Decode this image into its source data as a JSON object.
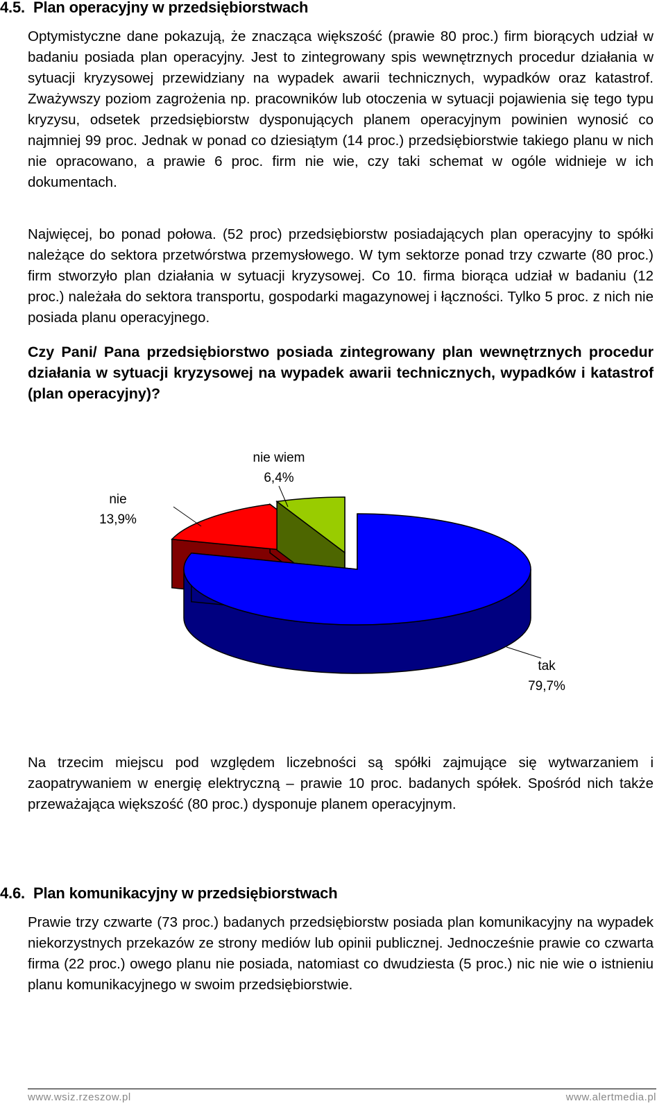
{
  "section1": {
    "number": "4.5.",
    "title": "Plan operacyjny w przedsiębiorstwach",
    "para1": "Optymistyczne dane pokazują, że znacząca większość (prawie 80 proc.) firm biorących udział w badaniu posiada plan operacyjny. Jest to zintegrowany spis wewnętrznych procedur działania w sytuacji kryzysowej przewidziany na wypadek awarii technicznych, wypadków oraz katastrof. Zważywszy poziom zagrożenia np. pracowników lub otoczenia w sytuacji pojawienia się tego typu kryzysu, odsetek przedsiębiorstw dysponujących planem operacyjnym powinien wynosić co najmniej 99 proc. Jednak w ponad co dziesiątym (14 proc.) przedsiębiorstwie takiego planu w nich nie opracowano, a prawie 6 proc. firm nie wie, czy taki schemat w ogóle widnieje w ich dokumentach.",
    "para2": "Najwięcej, bo ponad połowa. (52 proc) przedsiębiorstw posiadających plan operacyjny to spółki należące do sektora przetwórstwa przemysłowego. W tym sektorze ponad trzy czwarte (80 proc.) firm stworzyło plan działania w sytuacji kryzysowej. Co 10. firma biorąca udział w badaniu (12 proc.) należała do sektora transportu, gospodarki magazynowej i łączności. Tylko 5 proc. z nich nie posiada planu operacyjnego.",
    "question": "Czy Pani/ Pana przedsiębiorstwo posiada zintegrowany plan wewnętrznych procedur działania w sytuacji kryzysowej  na wypadek awarii technicznych, wypadków i katastrof (plan operacyjny)?",
    "para3": "Na trzecim miejscu pod względem liczebności są spółki zajmujące się wytwarzaniem i zaopatrywaniem w energię elektryczną – prawie 10 proc.  badanych spółek. Spośród nich także przeważająca większość (80 proc.) dysponuje planem operacyjnym."
  },
  "chart_data": {
    "type": "pie",
    "style": "3d-exploded",
    "slices": [
      {
        "label": "tak",
        "value": 79.7,
        "value_label": "79,7%",
        "color": "#0000ff",
        "side_color": "#000080"
      },
      {
        "label": "nie",
        "value": 13.9,
        "value_label": "13,9%",
        "color": "#ff0000",
        "side_color": "#800000"
      },
      {
        "label": "nie wiem",
        "value": 6.4,
        "value_label": "6,4%",
        "color": "#99cc00",
        "side_color": "#4d6600"
      }
    ]
  },
  "section2": {
    "number": "4.6.",
    "title": "Plan komunikacyjny w przedsiębiorstwach",
    "para1": "Prawie trzy czwarte (73 proc.) badanych przedsiębiorstw posiada plan komunikacyjny na wypadek niekorzystnych przekazów ze strony mediów lub opinii publicznej. Jednocześnie prawie co czwarta firma (22 proc.) owego planu nie posiada, natomiast co dwudziesta (5 proc.) nic nie wie o istnieniu planu komunikacyjnego w swoim przedsiębiorstwie."
  },
  "footer": {
    "left": "www.wsiz.rzeszow.pl",
    "right": "www.alertmedia.pl"
  }
}
